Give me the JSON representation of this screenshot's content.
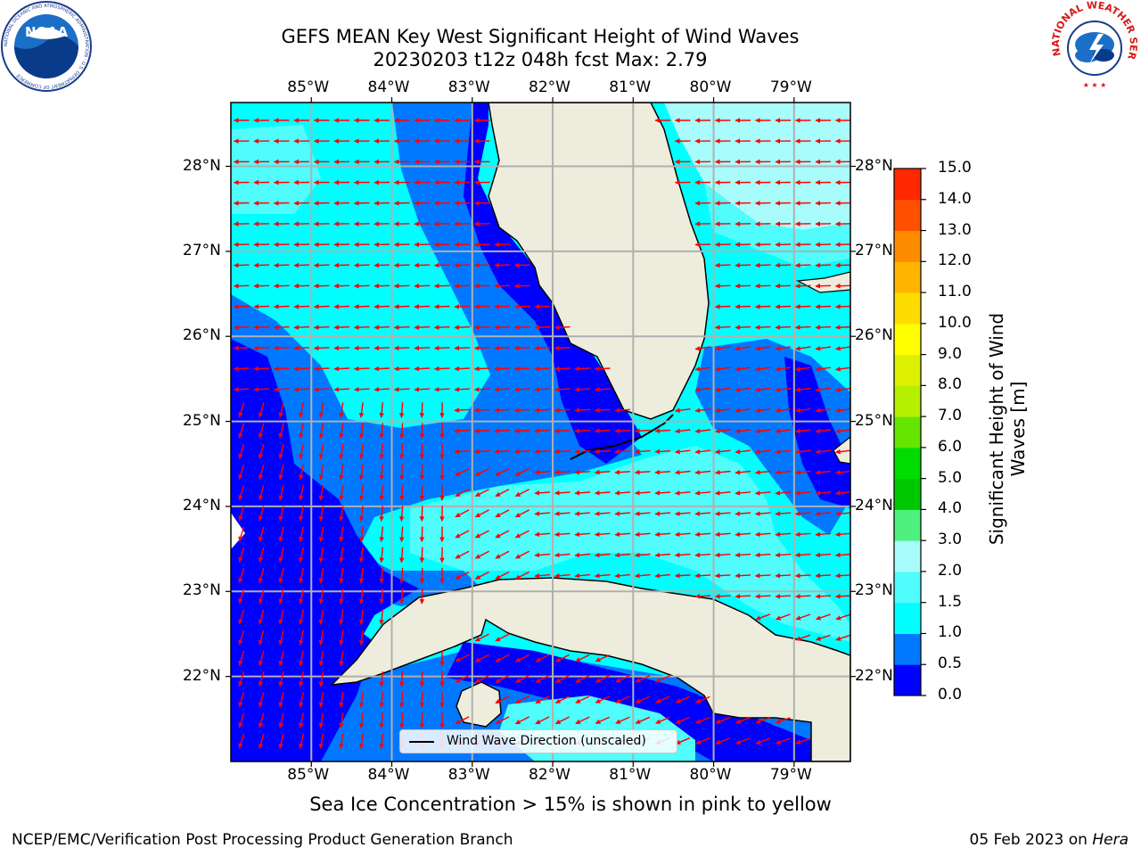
{
  "title_line1": "GEFS MEAN Key West Significant Height of Wind Waves",
  "title_line2": "20230203 t12z 048h fcst   Max: 2.79",
  "map": {
    "lon_labels": [
      "85°W",
      "84°W",
      "83°W",
      "82°W",
      "81°W",
      "80°W",
      "79°W"
    ],
    "lat_labels": [
      "28°N",
      "27°N",
      "26°N",
      "25°N",
      "24°N",
      "23°N",
      "22°N"
    ],
    "lon_range": [
      -86.0,
      -78.3
    ],
    "lat_range": [
      21.0,
      28.75
    ],
    "land_color": "#eeecdc",
    "arrow_color": "#ff0000",
    "coast_color": "#000000",
    "grid_color": "#b0b0b0"
  },
  "colorbar": {
    "title": "Significant Height of Wind Waves [m]",
    "tick_labels": [
      "0.0",
      "0.5",
      "1.0",
      "1.5",
      "2.0",
      "3.0",
      "4.0",
      "5.0",
      "6.0",
      "7.0",
      "8.0",
      "9.0",
      "10.0",
      "11.0",
      "12.0",
      "13.0",
      "14.0",
      "15.0"
    ],
    "colors": [
      "#0000ff",
      "#0078ff",
      "#00ffff",
      "#50fcfc",
      "#a8fcfc",
      "#50f080",
      "#00c800",
      "#00dc00",
      "#64e600",
      "#b4f000",
      "#dcf000",
      "#ffff00",
      "#ffdc00",
      "#ffb400",
      "#ff8c00",
      "#ff5000",
      "#ff2800"
    ]
  },
  "legend_label": "Wind Wave Direction (unscaled)",
  "sea_ice_note": "Sea Ice Concentration > 15% is shown in pink to yellow",
  "footer_left": "NCEP/EMC/Verification Post Processing Product Generation Branch",
  "footer_date": "05 Feb 2023",
  "footer_on": "on",
  "footer_machine": "Hera",
  "logos": {
    "noaa_text": "NOAA",
    "noaa_ring_text": "NATIONAL OCEANIC AND ATMOSPHERIC ADMINISTRATION · U.S. DEPARTMENT OF COMMERCE",
    "nws_ring_text": "NATIONAL WEATHER SERVICE"
  }
}
